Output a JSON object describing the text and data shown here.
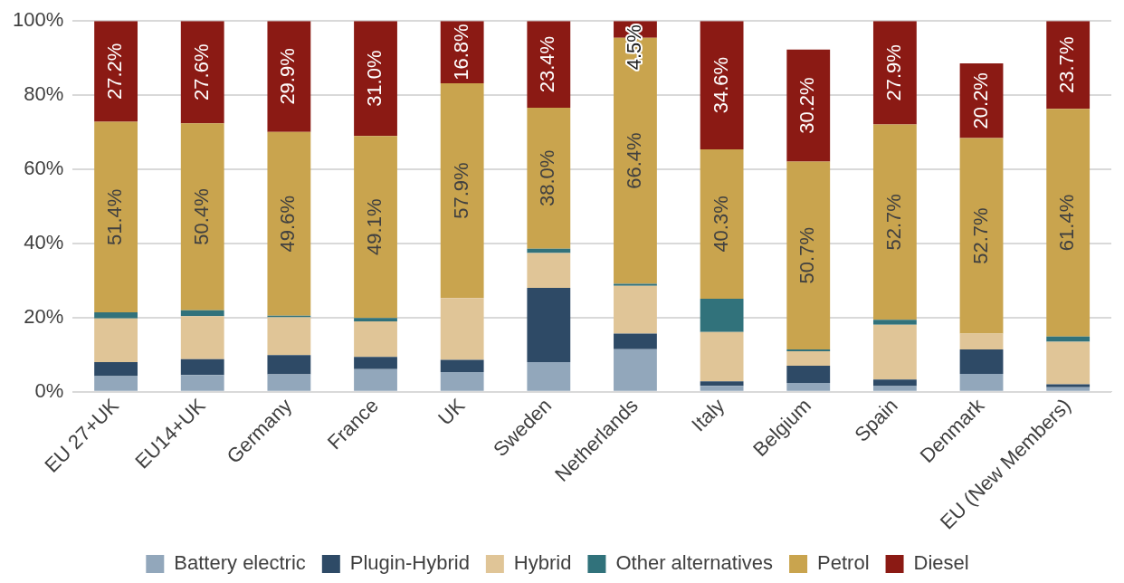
{
  "chart_data": {
    "type": "bar",
    "stacked": true,
    "categories": [
      "EU 27+UK",
      "EU14+UK",
      "Germany",
      "France",
      "UK",
      "Sweden",
      "Netherlands",
      "Italy",
      "Belgium",
      "Spain",
      "Denmark",
      "EU (New Members)"
    ],
    "ylim": [
      0,
      100
    ],
    "yticks": [
      {
        "value": 0,
        "label": "0%"
      },
      {
        "value": 20,
        "label": "20%"
      },
      {
        "value": 40,
        "label": "40%"
      },
      {
        "value": 60,
        "label": "60%"
      },
      {
        "value": 80,
        "label": "80%"
      },
      {
        "value": 100,
        "label": "100%"
      }
    ],
    "grid": "y",
    "legend": "bottom",
    "series": [
      {
        "name": "Battery electric",
        "color": "#92a7bb",
        "values": [
          4.2,
          4.5,
          4.7,
          6.1,
          5.3,
          8.0,
          11.5,
          1.6,
          2.4,
          1.5,
          4.8,
          1.2
        ]
      },
      {
        "name": "Plugin-Hybrid",
        "color": "#2e4a66",
        "values": [
          3.8,
          4.3,
          5.2,
          3.3,
          3.3,
          20.0,
          4.2,
          1.2,
          4.6,
          1.8,
          6.6,
          0.8
        ]
      },
      {
        "name": "Hybrid",
        "color": "#e0c597",
        "values": [
          11.8,
          11.6,
          10.2,
          9.6,
          16.7,
          9.4,
          12.9,
          13.3,
          3.9,
          14.8,
          4.3,
          11.5
        ]
      },
      {
        "name": "Other alternatives",
        "color": "#31727b",
        "values": [
          1.6,
          1.6,
          0.4,
          0.9,
          0,
          1.2,
          0.5,
          9.0,
          0.5,
          1.3,
          0,
          1.4
        ]
      },
      {
        "name": "Petrol",
        "color": "#c9a44e",
        "values": [
          51.4,
          50.4,
          49.6,
          49.1,
          57.9,
          38.0,
          66.4,
          40.3,
          50.7,
          52.7,
          52.7,
          61.4
        ],
        "value_labels": [
          "51.4%",
          "50.4%",
          "49.6%",
          "49.1%",
          "57.9%",
          "38.0%",
          "66.4%",
          "40.3%",
          "50.7%",
          "52.7%",
          "52.7%",
          "61.4%"
        ]
      },
      {
        "name": "Diesel",
        "color": "#8b1a14",
        "values": [
          27.2,
          27.6,
          29.9,
          31.0,
          16.8,
          23.4,
          4.5,
          34.6,
          30.2,
          27.9,
          20.2,
          23.7
        ],
        "value_labels": [
          "27.2%",
          "27.6%",
          "29.9%",
          "31.0%",
          "16.8%",
          "23.4%",
          "4.5%",
          "34.6%",
          "30.2%",
          "27.9%",
          "20.2%",
          "23.7%"
        ]
      }
    ]
  }
}
